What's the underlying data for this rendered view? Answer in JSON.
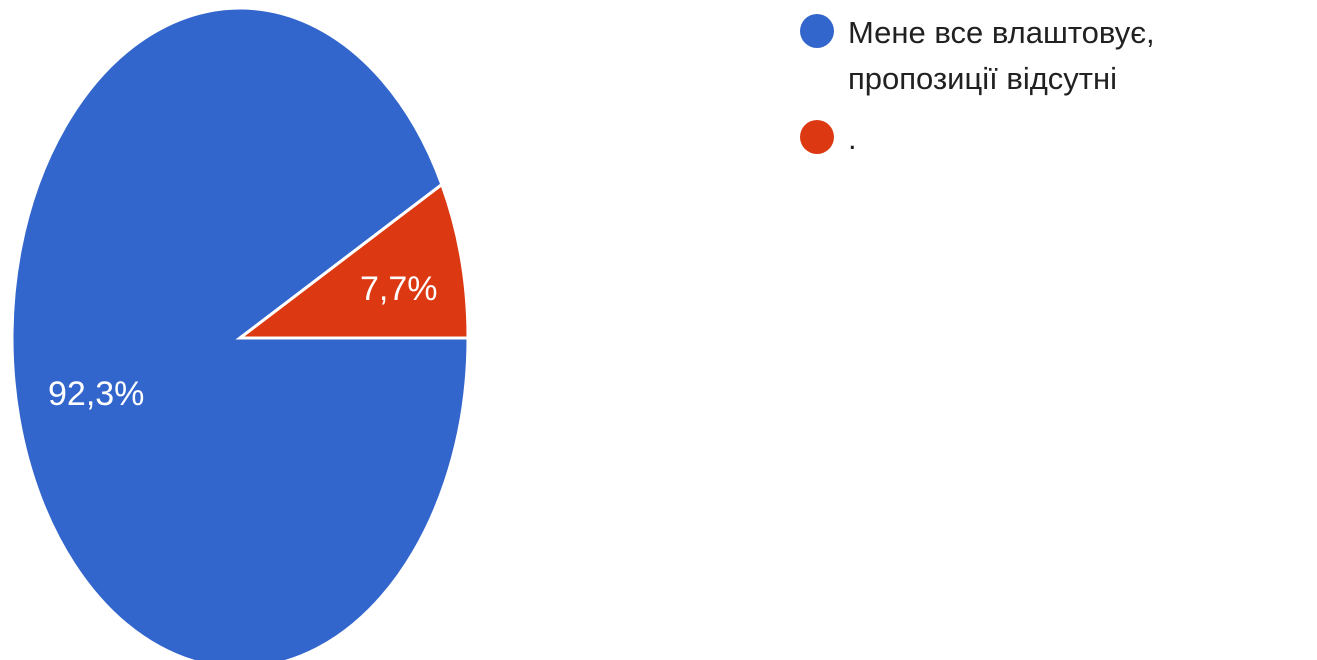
{
  "chart_data": {
    "type": "pie",
    "slices": [
      {
        "label": "Мене все влаштовує, пропозиції відсутні",
        "value": 92.3,
        "display": "92,3%",
        "color": "#3366cc"
      },
      {
        "label": ".",
        "value": 7.7,
        "display": "7,7%",
        "color": "#dc3912"
      }
    ],
    "legend_position": "top-right"
  }
}
